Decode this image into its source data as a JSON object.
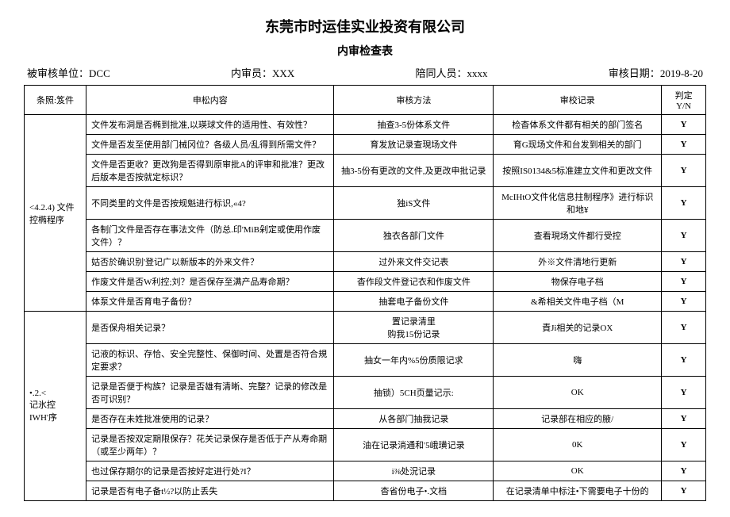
{
  "company": "东莞市时运佳实业投资有限公司",
  "form_title": "内审检查表",
  "header": {
    "unit_label": "被审核单位：",
    "unit_value": "DCC",
    "auditor_label": "内审员：",
    "auditor_value": "XXX",
    "accompany_label": "陪同人员：",
    "accompany_value": "xxxx",
    "date_label": "审核日期：",
    "date_value": "2019-8-20"
  },
  "columns": {
    "clause": "条照:笈件",
    "content": "申松内容",
    "method": "审核方法",
    "record": "审校记录",
    "judge": "判定\nY/N"
  },
  "section1_label": "<4.2.4) 文件控椭程序",
  "section2_label": "•.2.<\n记氷控IWH'序",
  "rows": [
    {
      "content": "文件发布洞是否椭到批准,以瑛球文件的适用性、有效性？",
      "method": "抽查3-5份体系文件",
      "record": "检杳体系文件都有相关的部门签名",
      "judge": "Y"
    },
    {
      "content": "文件是否发至使用部门械冈位？各级人员/乱得到所需文件？",
      "method": "育发放记录查現场文件",
      "record": "育G现场文件和台发到相关的部门",
      "judge": "Y"
    },
    {
      "content": "文件是否更收？更改狗是否得到原审批A的评审和批准？更改后版本是否按就定标识？",
      "method": "抽3-5份有更改的文件,及更改申批记录",
      "record": "按照IS0134&5标准建立文件和更改文件",
      "judge": "Y"
    },
    {
      "content": "不同类里的文件是否按规魁进行标识,«4?",
      "method": "独iS文件",
      "record": "McIHtO文件化信息拄制程序》进行标识和地¥",
      "judge": "Y"
    },
    {
      "content": "各制门文件是否存在事法文件（防总.印'MiB剁定或使用作废文件）？",
      "method": "独衣各部门文件",
      "record": "查看現场文件都行受控",
      "judge": "Y"
    },
    {
      "content": "姑否於确识别'登记广以新版本的外来文件？",
      "method": "过外来文件交记表",
      "record": "外※文件清地行更新",
      "judge": "Y"
    },
    {
      "content": "作废文件是否W利控;刘？是否保存至满产品寿命期？",
      "method": "杳作段文件登记衣和作废文件",
      "record": "物保存电子档",
      "judge": "Y"
    },
    {
      "content": "体泵文件是否育电子备份？",
      "method": "抽套电子备份文件",
      "record": "&希相关文件电子档（M",
      "judge": "Y"
    },
    {
      "content": "是否保舟相关记录？",
      "method": "置记录清里\n购我15份记录",
      "record": "責Ji相关的记录OX",
      "judge": "Y"
    },
    {
      "content": "记液的标识、存恰、安全完整性、保御时间、处置是否符合規定要求？",
      "method": "抽女一年内%5份质限记求",
      "record": "嗨",
      "judge": "Y"
    },
    {
      "content": "记录是否便于构族？记录是否雄有清晰、完整？记录的修改是否可识别？",
      "method": "抽锁）5CH页量记示:",
      "record": "OK",
      "judge": "Y"
    },
    {
      "content": "是否存在未姓批准使用的记录？",
      "method": "从各部门抽我记录",
      "record": "记录部在相应的腋/",
      "judge": "Y"
    },
    {
      "content": "记录是否按双定期限保存？花关记录保存是否低于产从寿命期（或至少两年）？",
      "method": "油在记录淌通和'5峨璜记录",
      "record": "0K",
      "judge": "Y"
    },
    {
      "content": "也过保存期尔的记录是否按好定进行处?I？",
      "method": "i⅜处況记录",
      "record": "OK",
      "judge": "Y"
    },
    {
      "content": "记录是否有电子备t½?以防止丢失",
      "method": "杳省份电子•.文档",
      "record": "在记录清单中标注•下需要电子十份的",
      "judge": "Y"
    }
  ]
}
